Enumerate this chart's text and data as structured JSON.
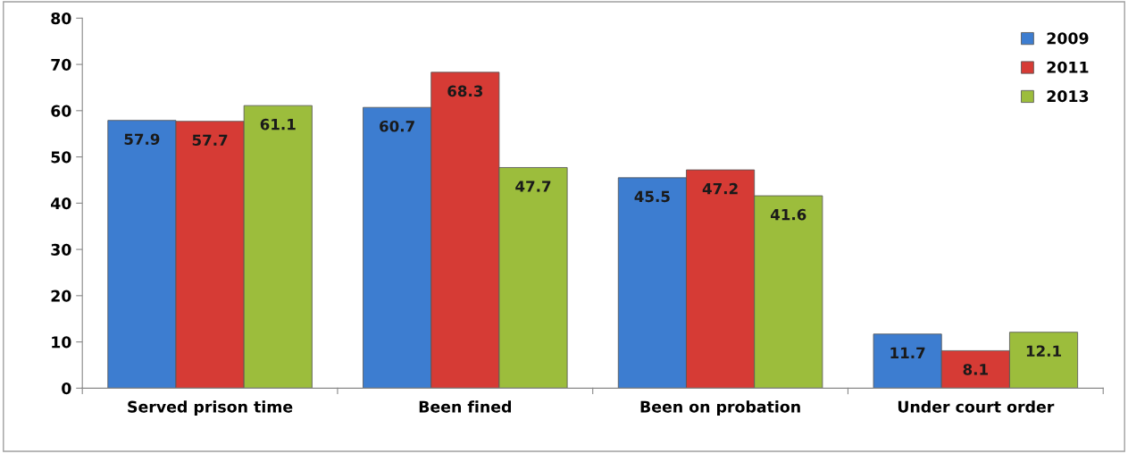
{
  "chart_data": {
    "type": "bar",
    "categories": [
      "Served prison time",
      "Been fined",
      "Been on probation",
      "Under court order"
    ],
    "series": [
      {
        "name": "2009",
        "color": "#3d7dd0",
        "values": [
          57.9,
          60.7,
          45.5,
          11.7
        ]
      },
      {
        "name": "2011",
        "color": "#d63b35",
        "values": [
          57.7,
          68.3,
          47.2,
          8.1
        ]
      },
      {
        "name": "2013",
        "color": "#9cbd3c",
        "values": [
          61.1,
          47.7,
          41.6,
          12.1
        ]
      }
    ],
    "ylim": [
      0,
      80
    ],
    "yticks": [
      0,
      10,
      20,
      30,
      40,
      50,
      60,
      70,
      80
    ],
    "data_labels": true,
    "legend": "top right",
    "grid": false
  }
}
